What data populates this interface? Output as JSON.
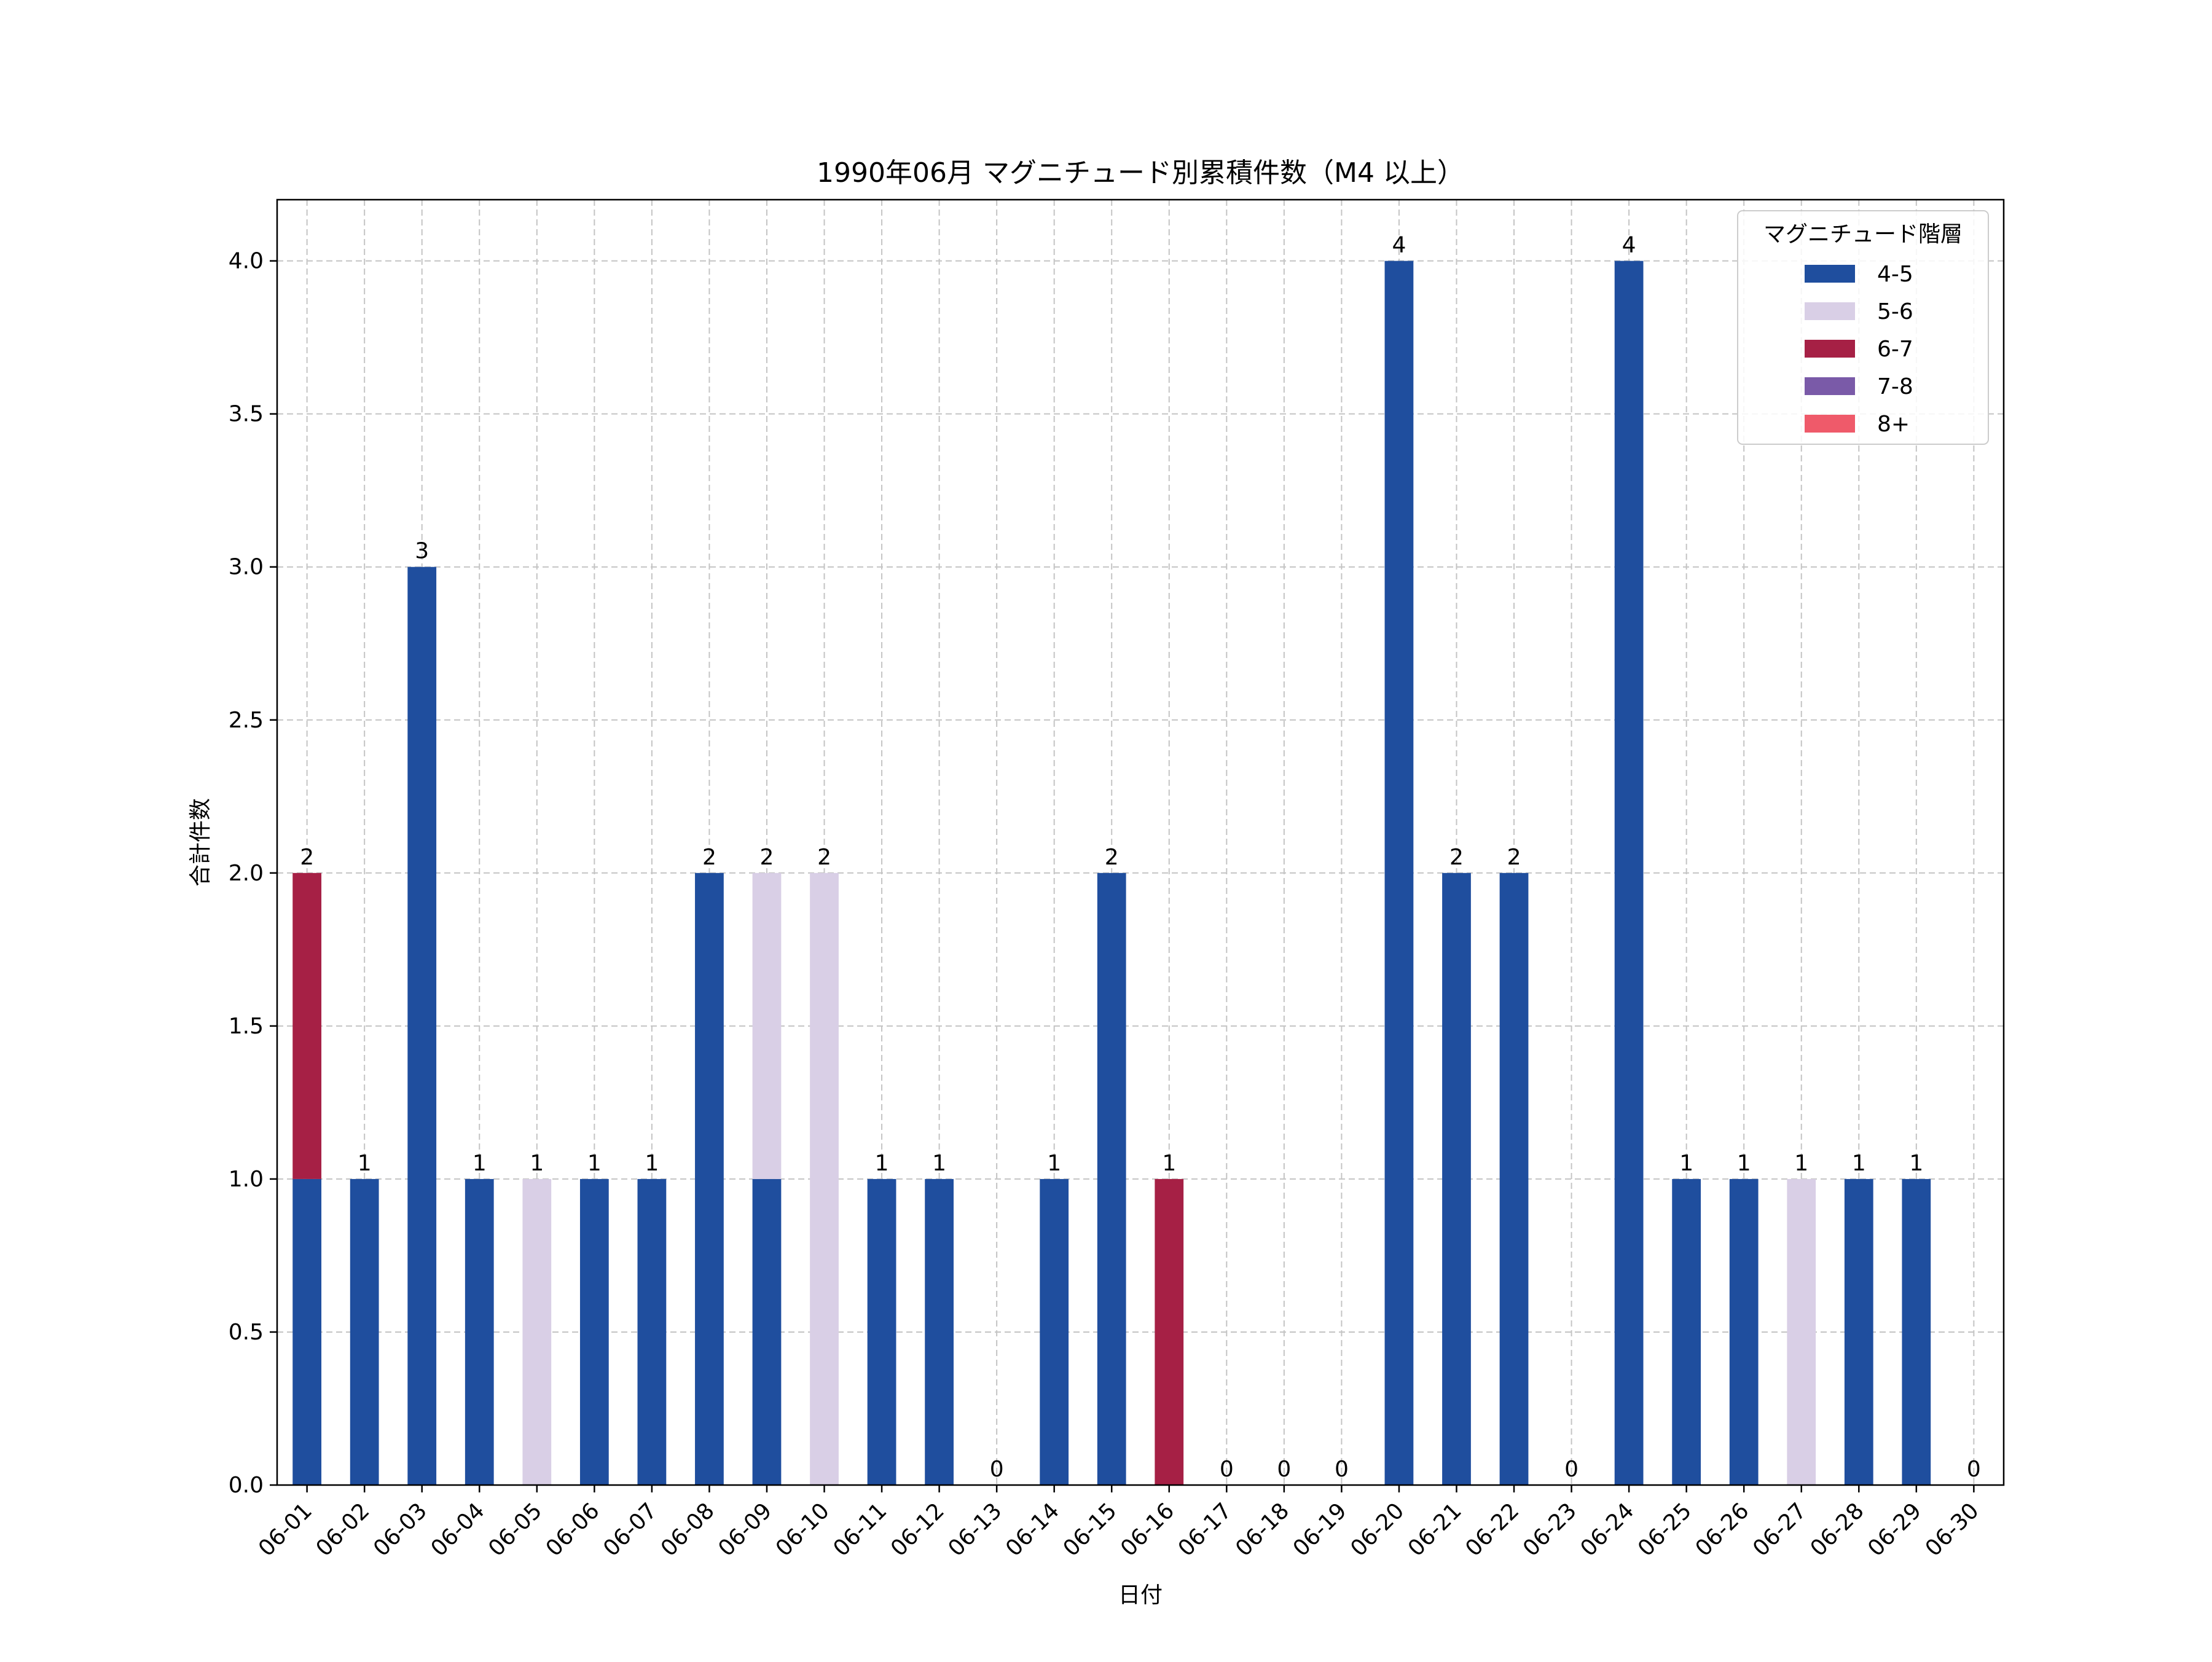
{
  "chart_data": {
    "type": "bar",
    "stacked": true,
    "title": "1990年06月 マグニチュード別累積件数（M4 以上）",
    "xlabel": "日付",
    "ylabel": "合計件数",
    "ylim": [
      0,
      4.2
    ],
    "yticks": [
      "0.0",
      "0.5",
      "1.0",
      "1.5",
      "2.0",
      "2.5",
      "3.0",
      "3.5",
      "4.0"
    ],
    "grid": true,
    "legend": {
      "title": "マグニチュード階層",
      "placement": "top-right"
    },
    "categories": [
      "06-01",
      "06-02",
      "06-03",
      "06-04",
      "06-05",
      "06-06",
      "06-07",
      "06-08",
      "06-09",
      "06-10",
      "06-11",
      "06-12",
      "06-13",
      "06-14",
      "06-15",
      "06-16",
      "06-17",
      "06-18",
      "06-19",
      "06-20",
      "06-21",
      "06-22",
      "06-23",
      "06-24",
      "06-25",
      "06-26",
      "06-27",
      "06-28",
      "06-29",
      "06-30"
    ],
    "series": [
      {
        "name": "4-5",
        "color": "#1f4e9e",
        "values": [
          1,
          1,
          3,
          1,
          0,
          1,
          1,
          2,
          1,
          0,
          1,
          1,
          0,
          1,
          2,
          0,
          0,
          0,
          0,
          4,
          2,
          2,
          0,
          4,
          1,
          1,
          0,
          1,
          1,
          0
        ]
      },
      {
        "name": "5-6",
        "color": "#d9cfe6",
        "values": [
          0,
          0,
          0,
          0,
          1,
          0,
          0,
          0,
          1,
          2,
          0,
          0,
          0,
          0,
          0,
          0,
          0,
          0,
          0,
          0,
          0,
          0,
          0,
          0,
          0,
          0,
          1,
          0,
          0,
          0
        ]
      },
      {
        "name": "6-7",
        "color": "#a62045",
        "values": [
          1,
          0,
          0,
          0,
          0,
          0,
          0,
          0,
          0,
          0,
          0,
          0,
          0,
          0,
          0,
          1,
          0,
          0,
          0,
          0,
          0,
          0,
          0,
          0,
          0,
          0,
          0,
          0,
          0,
          0
        ]
      },
      {
        "name": "7-8",
        "color": "#7a5aa8",
        "values": [
          0,
          0,
          0,
          0,
          0,
          0,
          0,
          0,
          0,
          0,
          0,
          0,
          0,
          0,
          0,
          0,
          0,
          0,
          0,
          0,
          0,
          0,
          0,
          0,
          0,
          0,
          0,
          0,
          0,
          0
        ]
      },
      {
        "name": "8+",
        "color": "#ef5a6a",
        "values": [
          0,
          0,
          0,
          0,
          0,
          0,
          0,
          0,
          0,
          0,
          0,
          0,
          0,
          0,
          0,
          0,
          0,
          0,
          0,
          0,
          0,
          0,
          0,
          0,
          0,
          0,
          0,
          0,
          0,
          0
        ]
      }
    ],
    "totals": [
      "2",
      "1",
      "3",
      "1",
      "1",
      "1",
      "1",
      "2",
      "2",
      "2",
      "1",
      "1",
      "0",
      "1",
      "2",
      "1",
      "0",
      "0",
      "0",
      "4",
      "2",
      "2",
      "0",
      "4",
      "1",
      "1",
      "1",
      "1",
      "1",
      "0"
    ]
  }
}
